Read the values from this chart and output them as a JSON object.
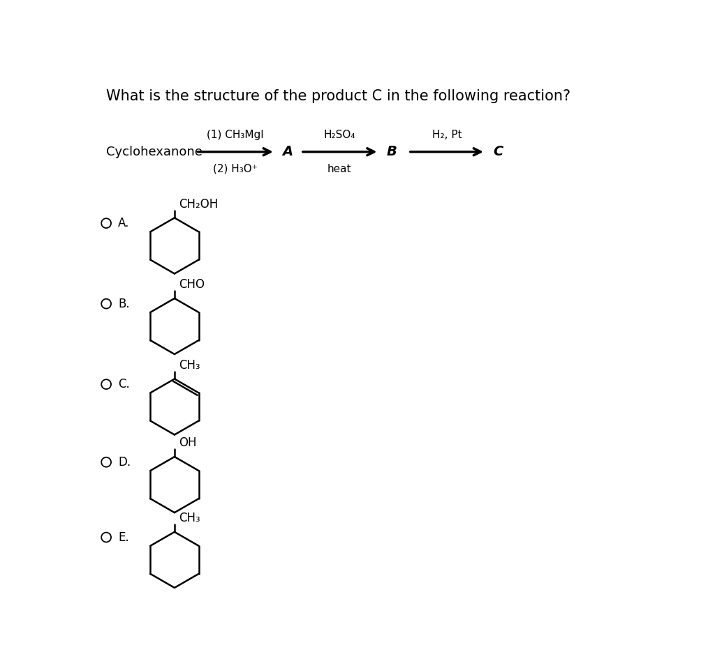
{
  "title": "What is the structure of the product C in the following reaction?",
  "reaction": {
    "reactant": "Cyclohexanone",
    "step1_above": "(1) CH₃MgI",
    "step1_below": "(2) H₃O⁺",
    "label_A": "A",
    "step2_above": "H₂SO₄",
    "step2_below": "heat",
    "label_B": "B",
    "step3_above": "H₂, Pt",
    "label_C": "C"
  },
  "choices": [
    {
      "label": "A.",
      "substituent": "CH₂OH",
      "double_bond": false
    },
    {
      "label": "B.",
      "substituent": "CHO",
      "double_bond": false
    },
    {
      "label": "C.",
      "substituent": "CH₃",
      "double_bond": true
    },
    {
      "label": "D.",
      "substituent": "OH",
      "double_bond": false
    },
    {
      "label": "E.",
      "substituent": "CH₃",
      "double_bond": false
    }
  ],
  "bg": "#ffffff",
  "fc": "#000000"
}
